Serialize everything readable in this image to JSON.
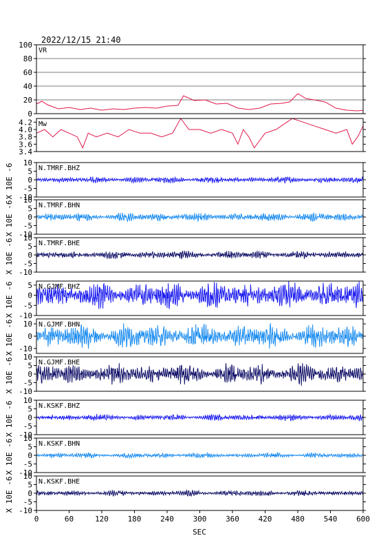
{
  "header": {
    "timestamp": "2022/12/15 21:40"
  },
  "x_axis": {
    "ticks": [
      "0",
      "60",
      "120",
      "180",
      "240",
      "300",
      "360",
      "420",
      "480",
      "540",
      "600"
    ],
    "xlabel": "SEC",
    "xlim": [
      0,
      600
    ]
  },
  "y_unit_label": "X 10E -6",
  "chart_data": [
    {
      "type": "line",
      "title": "VR",
      "ylim": [
        0,
        100
      ],
      "yticks": [
        "0",
        "20",
        "40",
        "60",
        "80",
        "100"
      ],
      "grid": true,
      "color": "#e0184a",
      "series": [
        {
          "x": [
            0,
            10,
            20,
            40,
            60,
            80,
            100,
            120,
            140,
            160,
            180,
            200,
            220,
            240,
            260,
            270,
            290,
            310,
            330,
            350,
            370,
            390,
            410,
            430,
            450,
            465,
            480,
            495,
            510,
            530,
            550,
            570,
            590,
            600
          ],
          "values": [
            14,
            18,
            13,
            7,
            9,
            6,
            8,
            5,
            7,
            6,
            8,
            9,
            8,
            11,
            12,
            26,
            19,
            20,
            14,
            15,
            8,
            6,
            8,
            14,
            15,
            17,
            29,
            22,
            20,
            17,
            8,
            5,
            4,
            5
          ]
        }
      ]
    },
    {
      "type": "line",
      "title": "Mw",
      "ylim": [
        3.4,
        4.3
      ],
      "yticks": [
        "3.4",
        "3.6",
        "3.8",
        "4.0",
        "4.2"
      ],
      "grid": false,
      "color": "#e0184a",
      "series": [
        {
          "x": [
            0,
            15,
            30,
            45,
            60,
            75,
            85,
            95,
            110,
            130,
            150,
            170,
            190,
            210,
            230,
            250,
            265,
            280,
            300,
            320,
            340,
            360,
            370,
            380,
            390,
            400,
            420,
            440,
            460,
            470,
            490,
            510,
            530,
            550,
            570,
            580,
            590,
            600
          ],
          "values": [
            3.9,
            4.0,
            3.8,
            4.0,
            3.9,
            3.8,
            3.5,
            3.9,
            3.8,
            3.9,
            3.8,
            4.0,
            3.9,
            3.9,
            3.8,
            3.9,
            4.3,
            4.0,
            4.0,
            3.9,
            4.0,
            3.9,
            3.6,
            4.0,
            3.8,
            3.5,
            3.9,
            4.0,
            4.2,
            4.3,
            4.2,
            4.1,
            4.0,
            3.9,
            4.0,
            3.6,
            3.8,
            4.1
          ]
        }
      ]
    },
    {
      "type": "line",
      "title": "N.TMRF.BHZ",
      "ylim": [
        -10,
        10
      ],
      "yticks": [
        "-10",
        "-5",
        "0",
        "5",
        "10"
      ],
      "color": "#1c1cf0",
      "amplitude": 1.2
    },
    {
      "type": "line",
      "title": "N.TMRF.BHN",
      "ylim": [
        -10,
        10
      ],
      "yticks": [
        "-10",
        "-5",
        "0",
        "5",
        "10"
      ],
      "color": "#1a8cf0",
      "amplitude": 1.6
    },
    {
      "type": "line",
      "title": "N.TMRF.BHE",
      "ylim": [
        -10,
        10
      ],
      "yticks": [
        "-10",
        "-5",
        "0",
        "5",
        "10"
      ],
      "color": "#121269",
      "amplitude": 1.5
    },
    {
      "type": "line",
      "title": "N.GJMF.BHZ",
      "ylim": [
        -10,
        7
      ],
      "yticks": [
        "-10",
        "-5",
        "0",
        "5"
      ],
      "color": "#1c1cf0",
      "amplitude": 4.5
    },
    {
      "type": "line",
      "title": "N.GJMF.BHN",
      "ylim": [
        -14,
        14
      ],
      "yticks": [
        "-10",
        "0",
        "10"
      ],
      "color": "#1a8cf0",
      "amplitude": 6.5
    },
    {
      "type": "line",
      "title": "N.GJMF.BHE",
      "ylim": [
        -10,
        10
      ],
      "yticks": [
        "-10",
        "-5",
        "0",
        "5",
        "10"
      ],
      "color": "#121269",
      "amplitude": 4.0
    },
    {
      "type": "line",
      "title": "N.KSKF.BHZ",
      "ylim": [
        -10,
        10
      ],
      "yticks": [
        "-10",
        "-5",
        "0",
        "5",
        "10"
      ],
      "color": "#1c1cf0",
      "amplitude": 1.2
    },
    {
      "type": "line",
      "title": "N.KSKF.BHN",
      "ylim": [
        -10,
        10
      ],
      "yticks": [
        "-10",
        "-5",
        "0",
        "5",
        "10"
      ],
      "color": "#1a8cf0",
      "amplitude": 1.0
    },
    {
      "type": "line",
      "title": "N.KSKF.BHE",
      "ylim": [
        -10,
        10
      ],
      "yticks": [
        "-10",
        "-5",
        "0",
        "5",
        "10"
      ],
      "color": "#121269",
      "amplitude": 1.1
    }
  ]
}
